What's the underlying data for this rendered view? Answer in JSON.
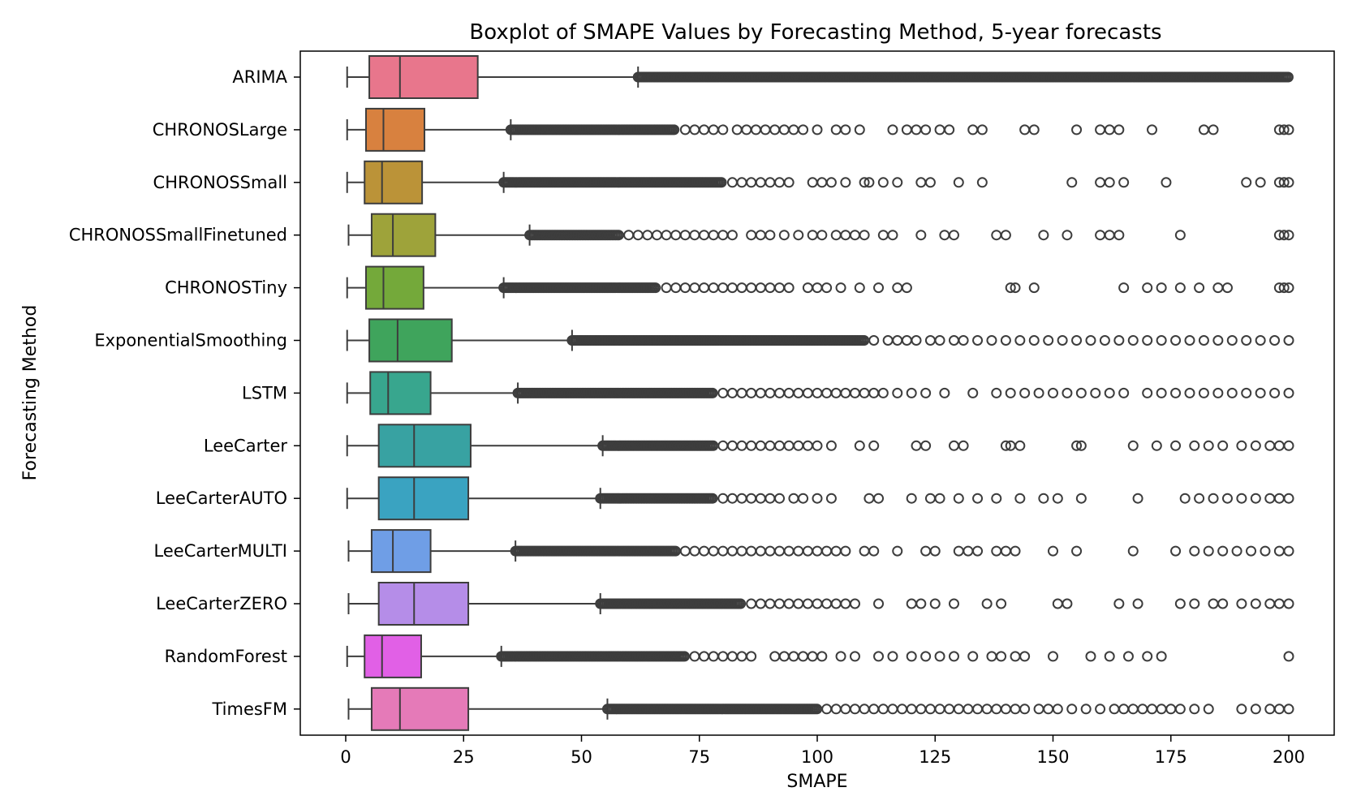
{
  "chart_data": {
    "type": "boxplot",
    "orientation": "horizontal",
    "title": "Boxplot of SMAPE Values by Forecasting Method, 5-year forecasts",
    "xlabel": "SMAPE",
    "ylabel": "Forecasting Method",
    "xlim": [
      -10,
      205
    ],
    "xticks": [
      0,
      25,
      50,
      75,
      100,
      125,
      150,
      175,
      200
    ],
    "grid": false,
    "legend": "none",
    "series": [
      {
        "name": "ARIMA",
        "color": "#e8768c",
        "whislo": 0.3,
        "q1": 5.0,
        "med": 11.5,
        "q3": 28.0,
        "whishi": 62.0,
        "dense_fliers": [
          [
            62,
            200
          ]
        ],
        "fliers": []
      },
      {
        "name": "CHRONOSLarge",
        "color": "#d8813f",
        "whislo": 0.3,
        "q1": 4.3,
        "med": 8.0,
        "q3": 16.7,
        "whishi": 35.0,
        "dense_fliers": [
          [
            35,
            70
          ]
        ],
        "fliers": [
          72,
          74,
          76,
          78,
          80,
          83,
          85,
          87,
          89,
          91,
          93,
          95,
          97,
          100,
          104,
          106,
          109,
          116,
          119,
          121,
          123,
          126,
          128,
          133,
          135,
          144,
          146,
          155,
          160,
          162,
          164,
          171,
          182,
          184,
          198,
          199,
          200
        ]
      },
      {
        "name": "CHRONOSSmall",
        "color": "#bb9338",
        "whislo": 0.3,
        "q1": 4.0,
        "med": 7.7,
        "q3": 16.2,
        "whishi": 33.5,
        "dense_fliers": [
          [
            33.5,
            80
          ]
        ],
        "fliers": [
          82,
          84,
          86,
          88,
          90,
          92,
          94,
          99,
          101,
          103,
          106,
          110,
          111,
          114,
          117,
          122,
          124,
          130,
          135,
          154,
          160,
          162,
          165,
          174,
          191,
          194,
          198,
          199,
          200
        ]
      },
      {
        "name": "CHRONOSSmallFinetuned",
        "color": "#9ea33a",
        "whislo": 0.6,
        "q1": 5.5,
        "med": 10.0,
        "q3": 19.0,
        "whishi": 39.0,
        "dense_fliers": [
          [
            39,
            58
          ]
        ],
        "fliers": [
          60,
          62,
          64,
          66,
          68,
          70,
          72,
          74,
          76,
          78,
          80,
          82,
          86,
          88,
          90,
          93,
          96,
          99,
          101,
          104,
          106,
          108,
          110,
          114,
          116,
          122,
          127,
          129,
          138,
          140,
          148,
          153,
          160,
          162,
          164,
          177,
          198,
          199,
          200
        ]
      },
      {
        "name": "CHRONOSTiny",
        "color": "#74a93a",
        "whislo": 0.3,
        "q1": 4.3,
        "med": 8.0,
        "q3": 16.5,
        "whishi": 33.5,
        "dense_fliers": [
          [
            33.5,
            66
          ]
        ],
        "fliers": [
          68,
          70,
          72,
          74,
          76,
          78,
          80,
          82,
          84,
          86,
          88,
          90,
          92,
          94,
          98,
          100,
          102,
          105,
          109,
          113,
          117,
          119,
          141,
          142,
          146,
          165,
          170,
          173,
          177,
          181,
          185,
          187,
          198,
          199,
          200
        ]
      },
      {
        "name": "ExponentialSmoothing",
        "color": "#3fa45c",
        "whislo": 0.3,
        "q1": 5.0,
        "med": 11.0,
        "q3": 22.5,
        "whishi": 48.0,
        "dense_fliers": [
          [
            48,
            110
          ]
        ],
        "fliers": [
          112,
          115,
          117,
          119,
          121,
          124,
          126,
          129,
          131,
          134,
          137,
          140,
          143,
          146,
          149,
          152,
          155,
          158,
          161,
          164,
          167,
          170,
          173,
          176,
          179,
          182,
          185,
          188,
          191,
          194,
          197,
          200
        ]
      },
      {
        "name": "LSTM",
        "color": "#38a68e",
        "whislo": 0.3,
        "q1": 5.2,
        "med": 9.0,
        "q3": 18.0,
        "whishi": 36.5,
        "dense_fliers": [
          [
            36.5,
            78
          ]
        ],
        "fliers": [
          80,
          82,
          84,
          86,
          88,
          90,
          92,
          94,
          96,
          98,
          100,
          102,
          104,
          106,
          108,
          110,
          112,
          114,
          117,
          120,
          123,
          127,
          133,
          138,
          141,
          144,
          147,
          150,
          153,
          156,
          159,
          162,
          165,
          170,
          173,
          176,
          179,
          182,
          185,
          188,
          191,
          194,
          197,
          200
        ]
      },
      {
        "name": "LeeCarter",
        "color": "#38a2a2",
        "whislo": 0.3,
        "q1": 7.0,
        "med": 14.5,
        "q3": 26.5,
        "whishi": 54.5,
        "dense_fliers": [
          [
            54.5,
            78
          ]
        ],
        "fliers": [
          80,
          82,
          84,
          86,
          88,
          90,
          92,
          94,
          96,
          98,
          100,
          103,
          109,
          112,
          121,
          123,
          129,
          131,
          140,
          141,
          143,
          155,
          156,
          167,
          172,
          176,
          180,
          183,
          186,
          190,
          193,
          196,
          198,
          200
        ]
      },
      {
        "name": "LeeCarterAUTO",
        "color": "#3aa3c1",
        "whislo": 0.3,
        "q1": 7.0,
        "med": 14.5,
        "q3": 26.0,
        "whishi": 54.0,
        "dense_fliers": [
          [
            54,
            78
          ]
        ],
        "fliers": [
          80,
          82,
          84,
          86,
          88,
          90,
          92,
          95,
          97,
          100,
          103,
          111,
          113,
          120,
          124,
          126,
          130,
          134,
          138,
          143,
          148,
          151,
          156,
          168,
          178,
          181,
          184,
          187,
          190,
          193,
          196,
          198,
          200
        ]
      },
      {
        "name": "LeeCarterMULTI",
        "color": "#6f9ee6",
        "whislo": 0.6,
        "q1": 5.5,
        "med": 10.0,
        "q3": 18.0,
        "whishi": 36.0,
        "dense_fliers": [
          [
            36,
            70
          ]
        ],
        "fliers": [
          72,
          74,
          76,
          78,
          80,
          82,
          84,
          86,
          88,
          90,
          92,
          94,
          96,
          98,
          100,
          102,
          104,
          106,
          110,
          112,
          117,
          123,
          125,
          130,
          132,
          134,
          138,
          140,
          142,
          150,
          155,
          167,
          176,
          180,
          183,
          186,
          189,
          192,
          195,
          198,
          200
        ]
      },
      {
        "name": "LeeCarterZERO",
        "color": "#b58de8",
        "whislo": 0.6,
        "q1": 7.0,
        "med": 14.5,
        "q3": 26.0,
        "whishi": 54.0,
        "dense_fliers": [
          [
            54,
            84
          ]
        ],
        "fliers": [
          86,
          88,
          90,
          92,
          94,
          96,
          98,
          100,
          102,
          104,
          106,
          108,
          113,
          120,
          122,
          125,
          129,
          136,
          139,
          151,
          153,
          164,
          168,
          177,
          180,
          184,
          186,
          190,
          193,
          196,
          198,
          200
        ]
      },
      {
        "name": "RandomForest",
        "color": "#e160e6",
        "whislo": 0.3,
        "q1": 4.0,
        "med": 7.7,
        "q3": 16.0,
        "whishi": 33.0,
        "dense_fliers": [
          [
            33,
            72
          ]
        ],
        "fliers": [
          74,
          76,
          78,
          80,
          82,
          84,
          86,
          91,
          93,
          95,
          97,
          99,
          101,
          105,
          108,
          113,
          116,
          120,
          123,
          126,
          129,
          133,
          137,
          139,
          142,
          144,
          150,
          158,
          162,
          166,
          170,
          173,
          200
        ]
      },
      {
        "name": "TimesFM",
        "color": "#e57ab8",
        "whislo": 0.6,
        "q1": 5.5,
        "med": 11.5,
        "q3": 26.0,
        "whishi": 55.5,
        "dense_fliers": [
          [
            55.5,
            100
          ]
        ],
        "fliers": [
          102,
          104,
          106,
          108,
          110,
          112,
          114,
          116,
          118,
          120,
          122,
          124,
          126,
          128,
          130,
          132,
          134,
          136,
          138,
          140,
          142,
          144,
          147,
          149,
          151,
          154,
          157,
          160,
          163,
          165,
          167,
          169,
          171,
          173,
          175,
          177,
          180,
          183,
          190,
          193,
          196,
          198,
          200
        ]
      }
    ]
  }
}
